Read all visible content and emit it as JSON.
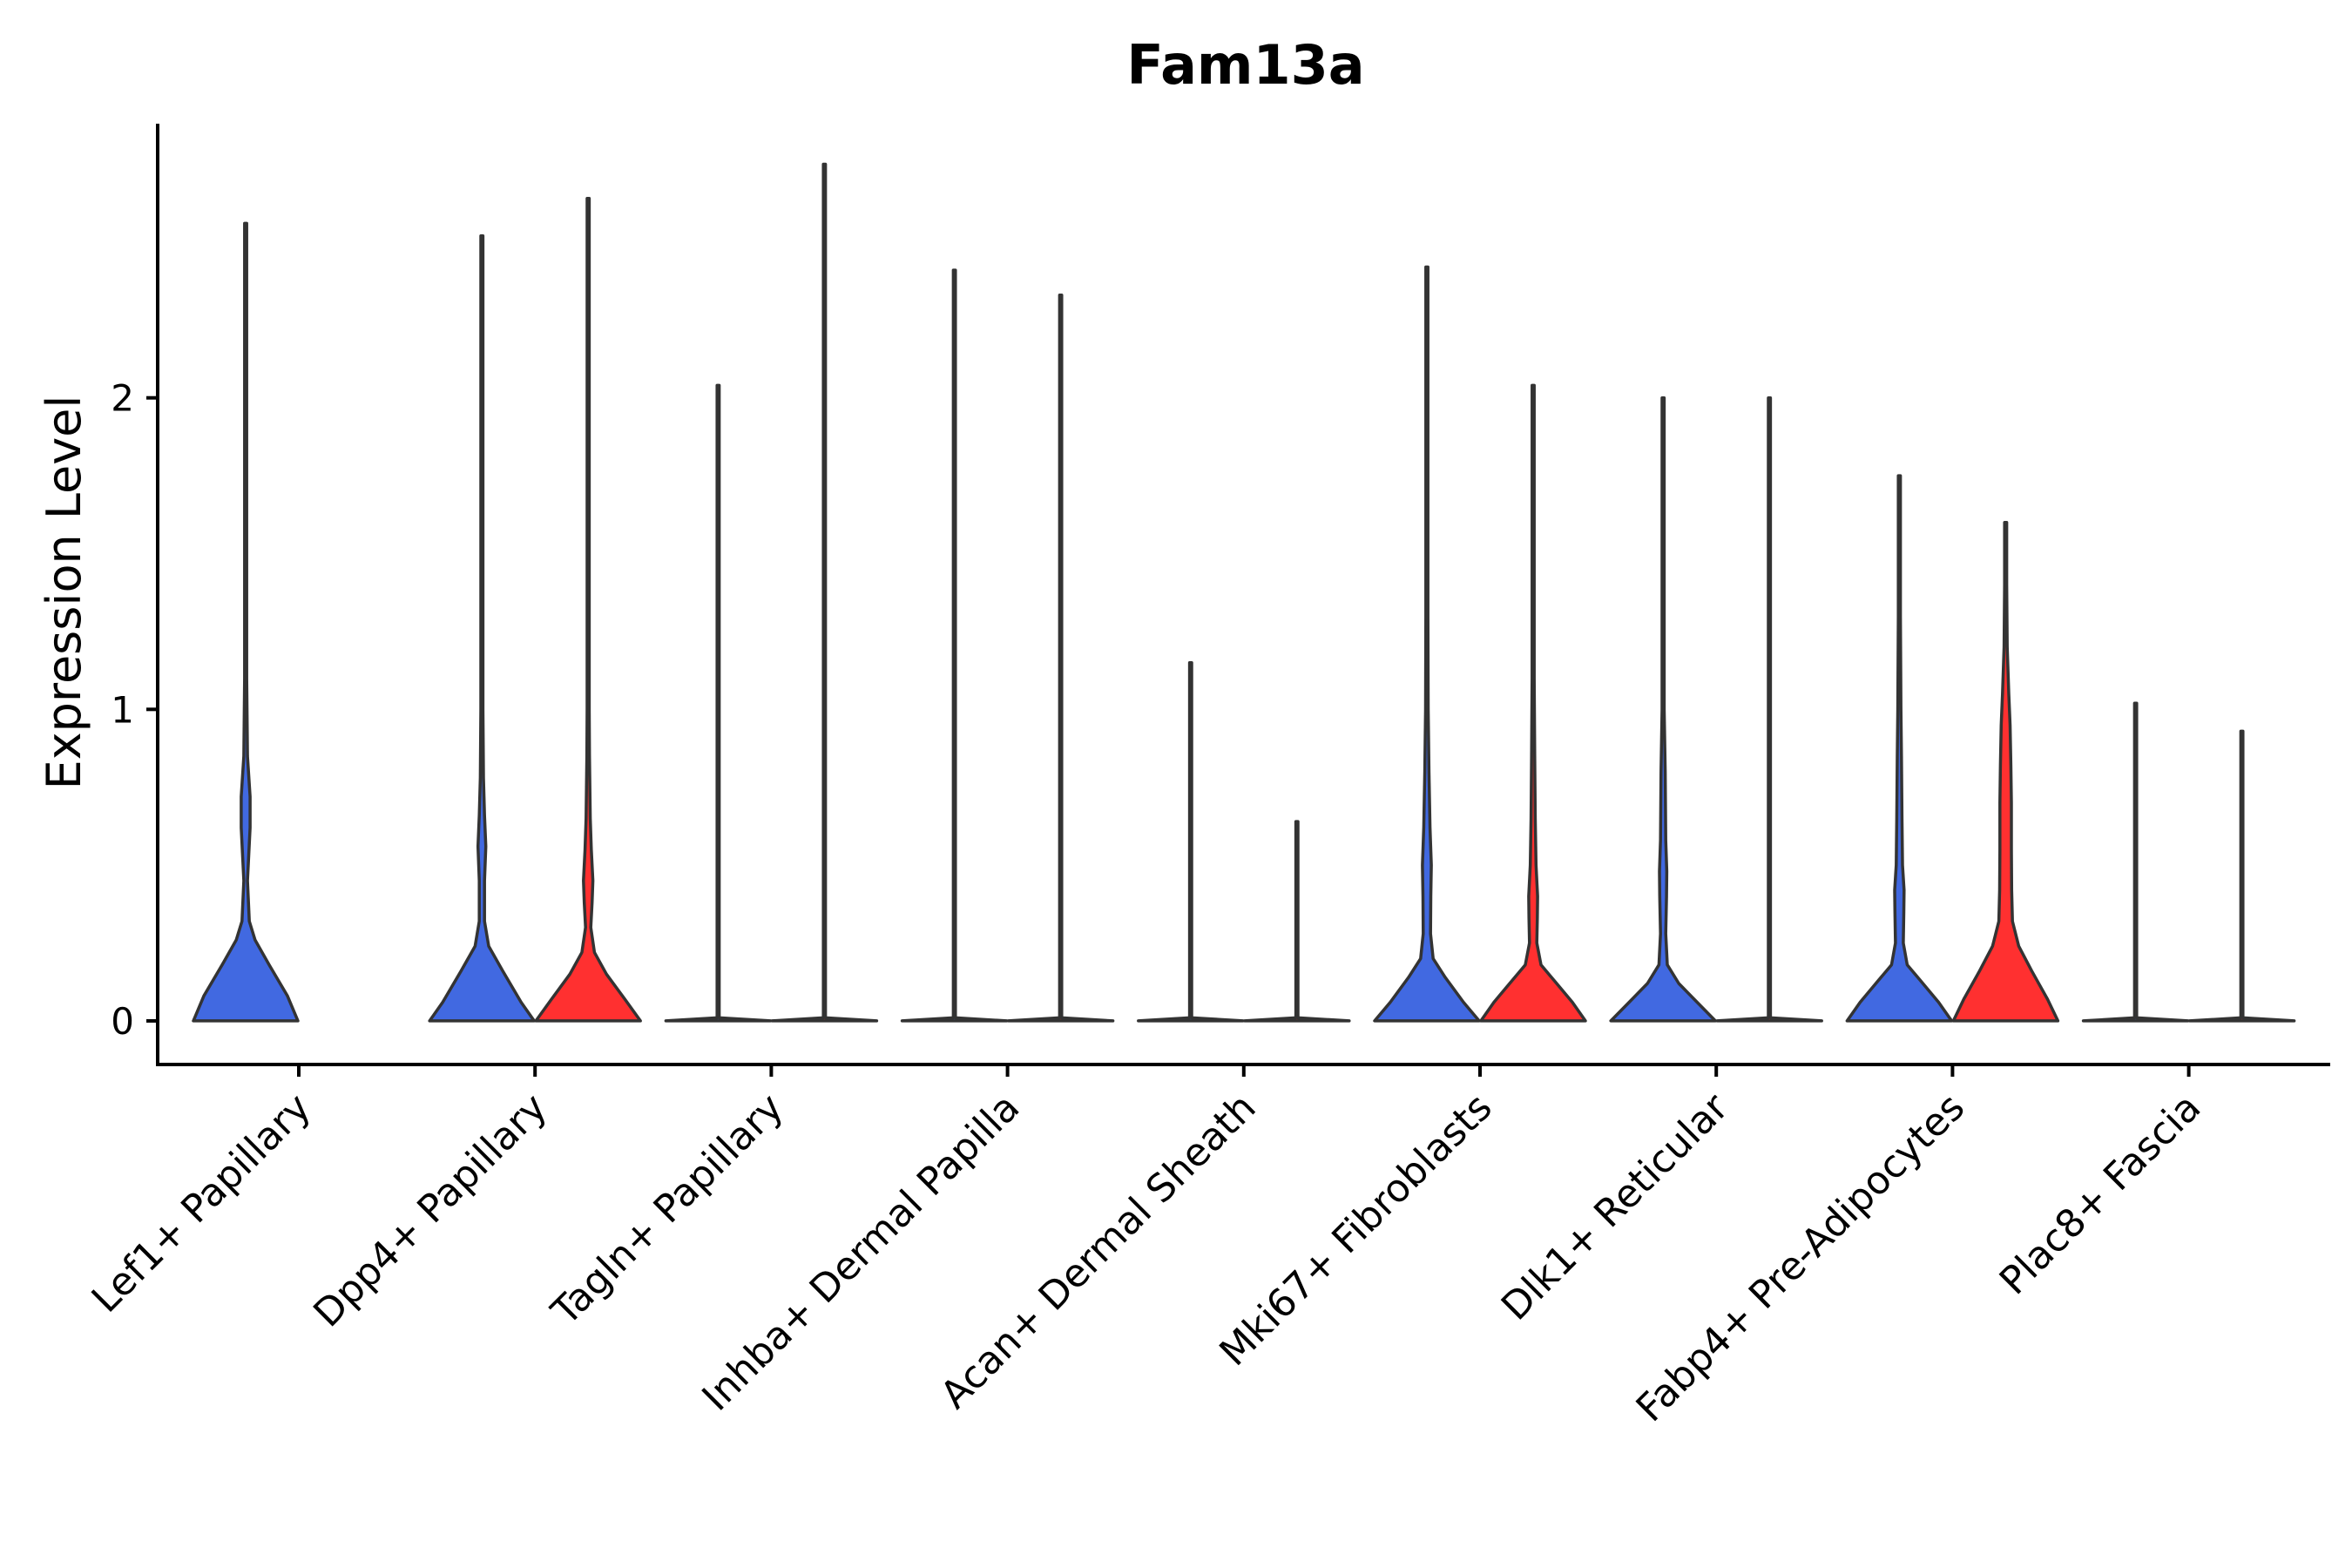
{
  "chart_data": {
    "type": "violin",
    "title": "Fam13a",
    "xlabel": "",
    "ylabel": "Expression Level",
    "ylim": [
      -0.14,
      2.88
    ],
    "yticks": [
      0,
      1,
      2
    ],
    "grid": false,
    "legend": "none",
    "series_colors": [
      "#4169E1",
      "#FF3030"
    ],
    "categories": [
      "Lef1+ Papillary",
      "Dpp4+ Papillary",
      "Tagln+ Papillary",
      "Inhba+ Dermal Papilla",
      "Acan+ Dermal Sheath",
      "Mki67+ Fibroblasts",
      "Dlk1+ Reticular",
      "Fabp4+ Pre-Adipocytes",
      "Plac8+ Fascia"
    ],
    "violins": [
      {
        "category": 0,
        "series": 0,
        "max": 2.56,
        "profile": [
          [
            0,
            1.0
          ],
          [
            0.08,
            0.8
          ],
          [
            0.18,
            0.45
          ],
          [
            0.26,
            0.18
          ],
          [
            0.32,
            0.07
          ],
          [
            0.45,
            0.035
          ],
          [
            0.62,
            0.085
          ],
          [
            0.72,
            0.085
          ],
          [
            0.85,
            0.035
          ],
          [
            1.1,
            0.02
          ],
          [
            1.35,
            0.018
          ],
          [
            1.7,
            0.01
          ],
          [
            2.0,
            0.006
          ],
          [
            2.3,
            0.003
          ],
          [
            2.56,
            0
          ]
        ]
      },
      {
        "category": 1,
        "series": 0,
        "max": 2.52,
        "profile": [
          [
            0,
            1.0
          ],
          [
            0.06,
            0.75
          ],
          [
            0.16,
            0.4
          ],
          [
            0.24,
            0.13
          ],
          [
            0.32,
            0.05
          ],
          [
            0.45,
            0.05
          ],
          [
            0.56,
            0.075
          ],
          [
            0.66,
            0.05
          ],
          [
            0.78,
            0.03
          ],
          [
            1.0,
            0.02
          ],
          [
            1.3,
            0.012
          ],
          [
            1.6,
            0.006
          ],
          [
            2.0,
            0.003
          ],
          [
            2.52,
            0
          ]
        ]
      },
      {
        "category": 1,
        "series": 1,
        "max": 2.64,
        "profile": [
          [
            0,
            1.0
          ],
          [
            0.07,
            0.7
          ],
          [
            0.15,
            0.35
          ],
          [
            0.22,
            0.12
          ],
          [
            0.3,
            0.05
          ],
          [
            0.38,
            0.075
          ],
          [
            0.45,
            0.09
          ],
          [
            0.55,
            0.06
          ],
          [
            0.65,
            0.04
          ],
          [
            0.85,
            0.025
          ],
          [
            1.0,
            0.018
          ],
          [
            1.3,
            0.01
          ],
          [
            1.7,
            0.005
          ],
          [
            2.2,
            0.003
          ],
          [
            2.64,
            0
          ]
        ]
      },
      {
        "category": 2,
        "series": 0,
        "max": 2.04,
        "profile": [
          [
            0,
            1.0
          ],
          [
            0.01,
            0.0
          ],
          [
            2.04,
            0
          ]
        ]
      },
      {
        "category": 2,
        "series": 1,
        "max": 2.75,
        "profile": [
          [
            0,
            1.0
          ],
          [
            0.01,
            0.0
          ],
          [
            2.75,
            0
          ]
        ]
      },
      {
        "category": 3,
        "series": 0,
        "max": 2.41,
        "profile": [
          [
            0,
            1.0
          ],
          [
            0.01,
            0.0
          ],
          [
            2.41,
            0
          ]
        ]
      },
      {
        "category": 3,
        "series": 1,
        "max": 2.33,
        "profile": [
          [
            0,
            1.0
          ],
          [
            0.01,
            0.0
          ],
          [
            2.33,
            0
          ]
        ]
      },
      {
        "category": 4,
        "series": 0,
        "max": 1.15,
        "profile": [
          [
            0,
            1.0
          ],
          [
            0.01,
            0.0
          ],
          [
            1.15,
            0
          ]
        ]
      },
      {
        "category": 4,
        "series": 1,
        "max": 0.64,
        "profile": [
          [
            0,
            1.0
          ],
          [
            0.01,
            0.0
          ],
          [
            0.64,
            0
          ]
        ]
      },
      {
        "category": 5,
        "series": 0,
        "max": 2.42,
        "profile": [
          [
            0,
            1.0
          ],
          [
            0.06,
            0.7
          ],
          [
            0.14,
            0.35
          ],
          [
            0.2,
            0.12
          ],
          [
            0.28,
            0.07
          ],
          [
            0.4,
            0.075
          ],
          [
            0.5,
            0.085
          ],
          [
            0.62,
            0.06
          ],
          [
            0.8,
            0.04
          ],
          [
            1.0,
            0.025
          ],
          [
            1.3,
            0.015
          ],
          [
            1.7,
            0.008
          ],
          [
            2.1,
            0.004
          ],
          [
            2.42,
            0
          ]
        ]
      },
      {
        "category": 5,
        "series": 1,
        "max": 2.04,
        "profile": [
          [
            0,
            1.0
          ],
          [
            0.06,
            0.75
          ],
          [
            0.12,
            0.45
          ],
          [
            0.18,
            0.15
          ],
          [
            0.25,
            0.07
          ],
          [
            0.33,
            0.08
          ],
          [
            0.4,
            0.085
          ],
          [
            0.5,
            0.055
          ],
          [
            0.65,
            0.04
          ],
          [
            0.85,
            0.03
          ],
          [
            1.1,
            0.015
          ],
          [
            1.5,
            0.008
          ],
          [
            2.04,
            0
          ]
        ]
      },
      {
        "category": 6,
        "series": 0,
        "max": 2.0,
        "profile": [
          [
            0,
            1.0
          ],
          [
            0.06,
            0.65
          ],
          [
            0.12,
            0.3
          ],
          [
            0.18,
            0.08
          ],
          [
            0.28,
            0.05
          ],
          [
            0.4,
            0.065
          ],
          [
            0.48,
            0.07
          ],
          [
            0.58,
            0.05
          ],
          [
            0.8,
            0.04
          ],
          [
            1.0,
            0.02
          ],
          [
            1.3,
            0.01
          ],
          [
            1.7,
            0.005
          ],
          [
            2.0,
            0
          ]
        ]
      },
      {
        "category": 6,
        "series": 1,
        "max": 2.0,
        "profile": [
          [
            0,
            1.0
          ],
          [
            0.01,
            0.0
          ],
          [
            2.0,
            0
          ]
        ]
      },
      {
        "category": 7,
        "series": 0,
        "max": 1.75,
        "profile": [
          [
            0,
            1.0
          ],
          [
            0.06,
            0.75
          ],
          [
            0.13,
            0.4
          ],
          [
            0.18,
            0.15
          ],
          [
            0.25,
            0.075
          ],
          [
            0.35,
            0.085
          ],
          [
            0.42,
            0.09
          ],
          [
            0.5,
            0.06
          ],
          [
            0.65,
            0.05
          ],
          [
            0.85,
            0.04
          ],
          [
            1.0,
            0.03
          ],
          [
            1.3,
            0.012
          ],
          [
            1.75,
            0
          ]
        ]
      },
      {
        "category": 7,
        "series": 1,
        "max": 1.6,
        "profile": [
          [
            0,
            1.0
          ],
          [
            0.07,
            0.8
          ],
          [
            0.16,
            0.5
          ],
          [
            0.24,
            0.25
          ],
          [
            0.32,
            0.13
          ],
          [
            0.42,
            0.115
          ],
          [
            0.55,
            0.11
          ],
          [
            0.7,
            0.11
          ],
          [
            0.82,
            0.1
          ],
          [
            0.95,
            0.085
          ],
          [
            1.05,
            0.06
          ],
          [
            1.2,
            0.03
          ],
          [
            1.4,
            0.015
          ],
          [
            1.6,
            0
          ]
        ]
      },
      {
        "category": 8,
        "series": 0,
        "max": 1.02,
        "profile": [
          [
            0,
            1.0
          ],
          [
            0.01,
            0.0
          ],
          [
            1.02,
            0
          ]
        ]
      },
      {
        "category": 8,
        "series": 1,
        "max": 0.93,
        "profile": [
          [
            0,
            1.0
          ],
          [
            0.01,
            0.0
          ],
          [
            0.93,
            0
          ]
        ]
      }
    ]
  }
}
